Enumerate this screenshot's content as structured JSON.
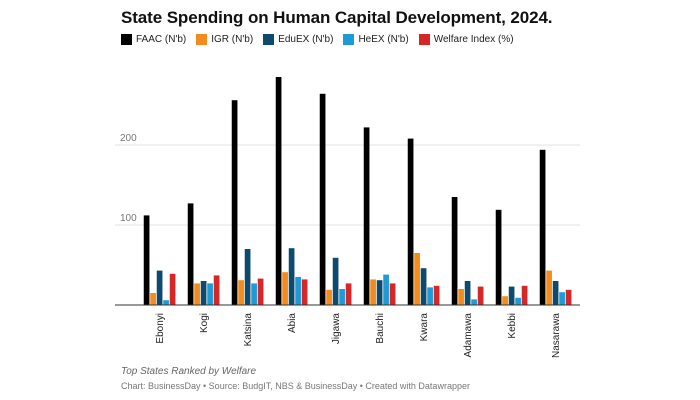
{
  "chart_data": {
    "type": "bar",
    "title": "State Spending on Human Capital Development, 2024.",
    "subtitle": "Top States Ranked by Welfare",
    "footer": "Chart: BusinessDay • Source: BudgIT, NBS & BusinessDay • Created with Datawrapper",
    "xlabel": "",
    "ylabel": "",
    "ylim": [
      0,
      290
    ],
    "yticks": [
      {
        "value": 100,
        "label": "100"
      },
      {
        "value": 200,
        "label": "200"
      }
    ],
    "categories": [
      "Ebonyi",
      "Kogi",
      "Katsina",
      "Abia",
      "Jigawa",
      "Bauchi",
      "Kwara",
      "Adamawa",
      "Kebbi",
      "Nasarawa"
    ],
    "series": [
      {
        "name": "FAAC (N'b)",
        "color": "#000000",
        "values": [
          112,
          127,
          256,
          285,
          264,
          222,
          208,
          135,
          119,
          194
        ]
      },
      {
        "name": "IGR (N'b)",
        "color": "#f28c1e",
        "values": [
          15,
          27,
          31,
          41,
          19,
          32,
          65,
          20,
          11,
          43
        ]
      },
      {
        "name": "EduEX (N'b)",
        "color": "#0c4a6e",
        "values": [
          43,
          30,
          70,
          71,
          59,
          31,
          46,
          30,
          23,
          30
        ]
      },
      {
        "name": "HeEX (N'b)",
        "color": "#1e9ad6",
        "values": [
          6,
          27,
          27,
          35,
          20,
          38,
          22,
          7,
          9,
          16
        ]
      },
      {
        "name": "Welfare Index (%)",
        "color": "#d62728",
        "values": [
          39,
          37,
          33,
          32,
          27,
          27,
          24,
          23,
          24,
          19
        ]
      }
    ],
    "grid": true,
    "legend": "top-left"
  }
}
